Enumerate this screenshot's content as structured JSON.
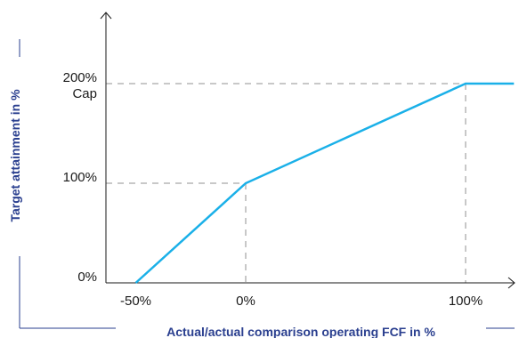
{
  "chart_data": {
    "type": "line",
    "xlabel": "Actual/actual comparison operating FCF in %",
    "ylabel": "Target attainment in %",
    "x_ticks": [
      {
        "value": -50,
        "label": "-50%"
      },
      {
        "value": 0,
        "label": "0%"
      },
      {
        "value": 100,
        "label": "100%"
      }
    ],
    "y_ticks": [
      {
        "value": 0,
        "label": "0%",
        "sublabel": ""
      },
      {
        "value": 100,
        "label": "100%",
        "sublabel": ""
      },
      {
        "value": 200,
        "label": "200%",
        "sublabel": "Cap"
      }
    ],
    "xlim": [
      -62,
      122
    ],
    "ylim": [
      0,
      300
    ],
    "series": [
      {
        "x": [
          -50,
          0,
          100,
          122
        ],
        "y": [
          0,
          100,
          200,
          200
        ]
      }
    ],
    "reference_lines": [
      {
        "x": 0,
        "y": 100
      },
      {
        "x": 100,
        "y": 200
      }
    ],
    "colors": {
      "line": "#1ab0e8",
      "axis": "#1a1a1a",
      "reference": "#c8c8c8",
      "title": "#2a3f8f"
    }
  }
}
